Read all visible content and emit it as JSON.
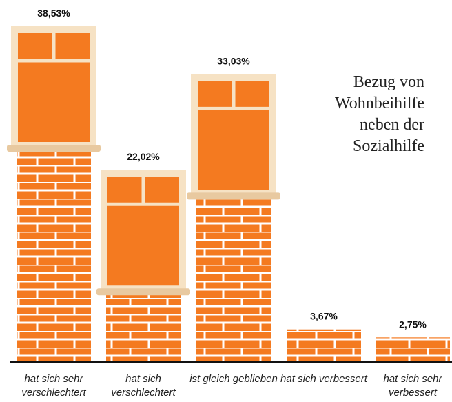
{
  "chart_data": {
    "type": "bar",
    "title": "Bezug von Wohnbeihilfe neben der Sozialhilfe",
    "categories": [
      "hat sich sehr verschlechtert",
      "hat sich verschlechtert",
      "ist gleich geblieben",
      "hat sich verbessert",
      "hat sich sehr verbessert"
    ],
    "values": [
      38.53,
      22.02,
      33.03,
      3.67,
      2.75
    ],
    "value_labels": [
      "38,53%",
      "22,02%",
      "33,03%",
      "3,67%",
      "2,75%"
    ],
    "color": "#f47a20"
  }
}
